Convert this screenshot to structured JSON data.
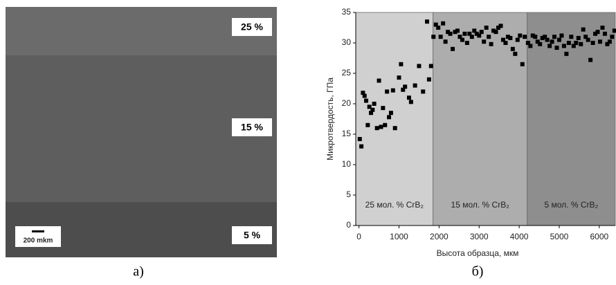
{
  "image_panel": {
    "labels": [
      "25 %",
      "15 %",
      "5 %"
    ],
    "scale_bar": "200 mkm",
    "caption": "а)"
  },
  "chart_data": {
    "type": "scatter",
    "caption": "б)",
    "x_label": "Высота образца, мкм",
    "y_label": "Микротвердость, ГПа",
    "xlim": [
      -80,
      6400
    ],
    "xticks": [
      0,
      1000,
      2000,
      3000,
      4000,
      5000,
      6000
    ],
    "ylim": [
      0,
      35
    ],
    "yticks": [
      0,
      5,
      10,
      15,
      20,
      25,
      30,
      35
    ],
    "bands": [
      {
        "label": "25 мол. % CrB₂",
        "start": -80,
        "end": 1850,
        "color": "#d0d0d0"
      },
      {
        "label": "15 мол. % CrB₂",
        "start": 1850,
        "end": 4200,
        "color": "#adadad"
      },
      {
        "label": "5 мол. % CrB₂",
        "start": 4200,
        "end": 6400,
        "color": "#8e8e8e"
      }
    ],
    "color": "#000000",
    "x": [
      20,
      60,
      100,
      140,
      180,
      220,
      260,
      300,
      340,
      380,
      450,
      500,
      550,
      600,
      650,
      700,
      750,
      800,
      850,
      900,
      1000,
      1050,
      1100,
      1150,
      1250,
      1300,
      1400,
      1500,
      1600,
      1700,
      1750,
      1800,
      1860,
      1920,
      1980,
      2040,
      2100,
      2160,
      2220,
      2280,
      2340,
      2400,
      2460,
      2520,
      2580,
      2640,
      2700,
      2760,
      2820,
      2880,
      2940,
      3000,
      3060,
      3120,
      3180,
      3240,
      3300,
      3360,
      3420,
      3480,
      3540,
      3600,
      3660,
      3720,
      3780,
      3840,
      3900,
      3960,
      4020,
      4080,
      4140,
      4220,
      4280,
      4340,
      4400,
      4460,
      4520,
      4580,
      4640,
      4700,
      4760,
      4820,
      4880,
      4940,
      5000,
      5060,
      5120,
      5180,
      5240,
      5300,
      5360,
      5420,
      5480,
      5540,
      5600,
      5660,
      5720,
      5780,
      5840,
      5900,
      5960,
      6020,
      6080,
      6140,
      6200,
      6260,
      6320,
      6380
    ],
    "values": [
      14.2,
      13,
      21.8,
      21.3,
      20.5,
      16.5,
      19.5,
      18.5,
      19,
      20,
      16,
      23.8,
      16.2,
      19.3,
      16.5,
      22,
      17.8,
      18.5,
      22.2,
      16,
      24.3,
      26.5,
      22.3,
      22.8,
      21,
      20.3,
      23,
      26.2,
      22,
      33.5,
      24,
      26.2,
      31,
      33,
      32.5,
      31,
      33.2,
      30.2,
      31.8,
      31.5,
      29,
      31.8,
      32,
      31,
      30.5,
      31.5,
      30,
      31.5,
      31,
      32,
      31.5,
      31.2,
      31.8,
      30.2,
      32.5,
      31,
      29.8,
      32,
      31.8,
      32.5,
      32.8,
      30.5,
      30,
      31,
      30.8,
      29,
      28.2,
      30.5,
      31.2,
      26.5,
      31,
      30,
      29.5,
      31.2,
      31,
      30.2,
      29.8,
      30.8,
      31,
      30.5,
      29.5,
      30.2,
      31,
      29.2,
      30.5,
      31.2,
      29.5,
      28.2,
      30,
      31,
      29.5,
      30,
      30.8,
      29.8,
      32.2,
      31,
      30.5,
      27.2,
      30,
      31.5,
      31.8,
      30.2,
      32.5,
      31.5,
      29.8,
      30.2,
      31,
      32
    ]
  }
}
